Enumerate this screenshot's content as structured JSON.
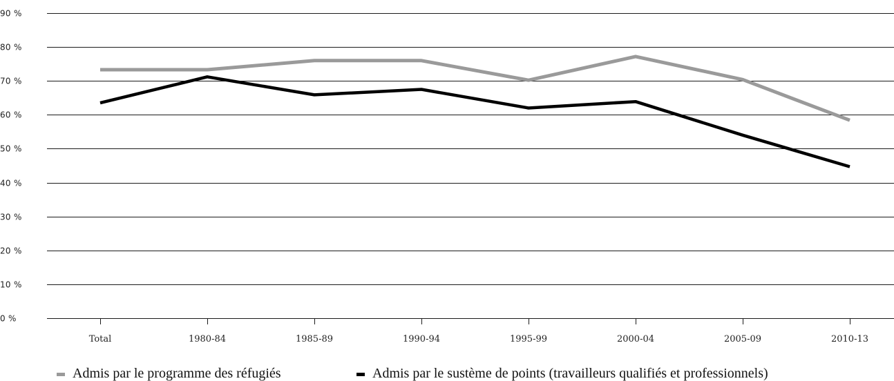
{
  "chart_data": {
    "type": "line",
    "title": "",
    "xlabel": "",
    "ylabel": "",
    "categories": [
      "Total",
      "1980-84",
      "1985-89",
      "1990-94",
      "1995-99",
      "2000-04",
      "2005-09",
      "2010-13"
    ],
    "y_ticks": [
      "0 %",
      "10 %",
      "20 %",
      "30 %",
      "40 %",
      "50 %",
      "60 %",
      "70 %",
      "80 %",
      "90 %"
    ],
    "ylim": [
      0,
      90
    ],
    "grid": "horizontal",
    "legend_position": "bottom",
    "series": [
      {
        "name": "Admis par le programme des réfugiés",
        "color": "#9a9a9a",
        "values": [
          73.3,
          73.3,
          76.0,
          76.0,
          70.2,
          77.2,
          70.4,
          58.4
        ]
      },
      {
        "name": "Admis par le sustème de points (travailleurs qualifiés et professionnels)",
        "color": "#000000",
        "values": [
          63.5,
          71.2,
          65.9,
          67.5,
          62.0,
          63.9,
          54.0,
          44.7
        ]
      }
    ]
  }
}
